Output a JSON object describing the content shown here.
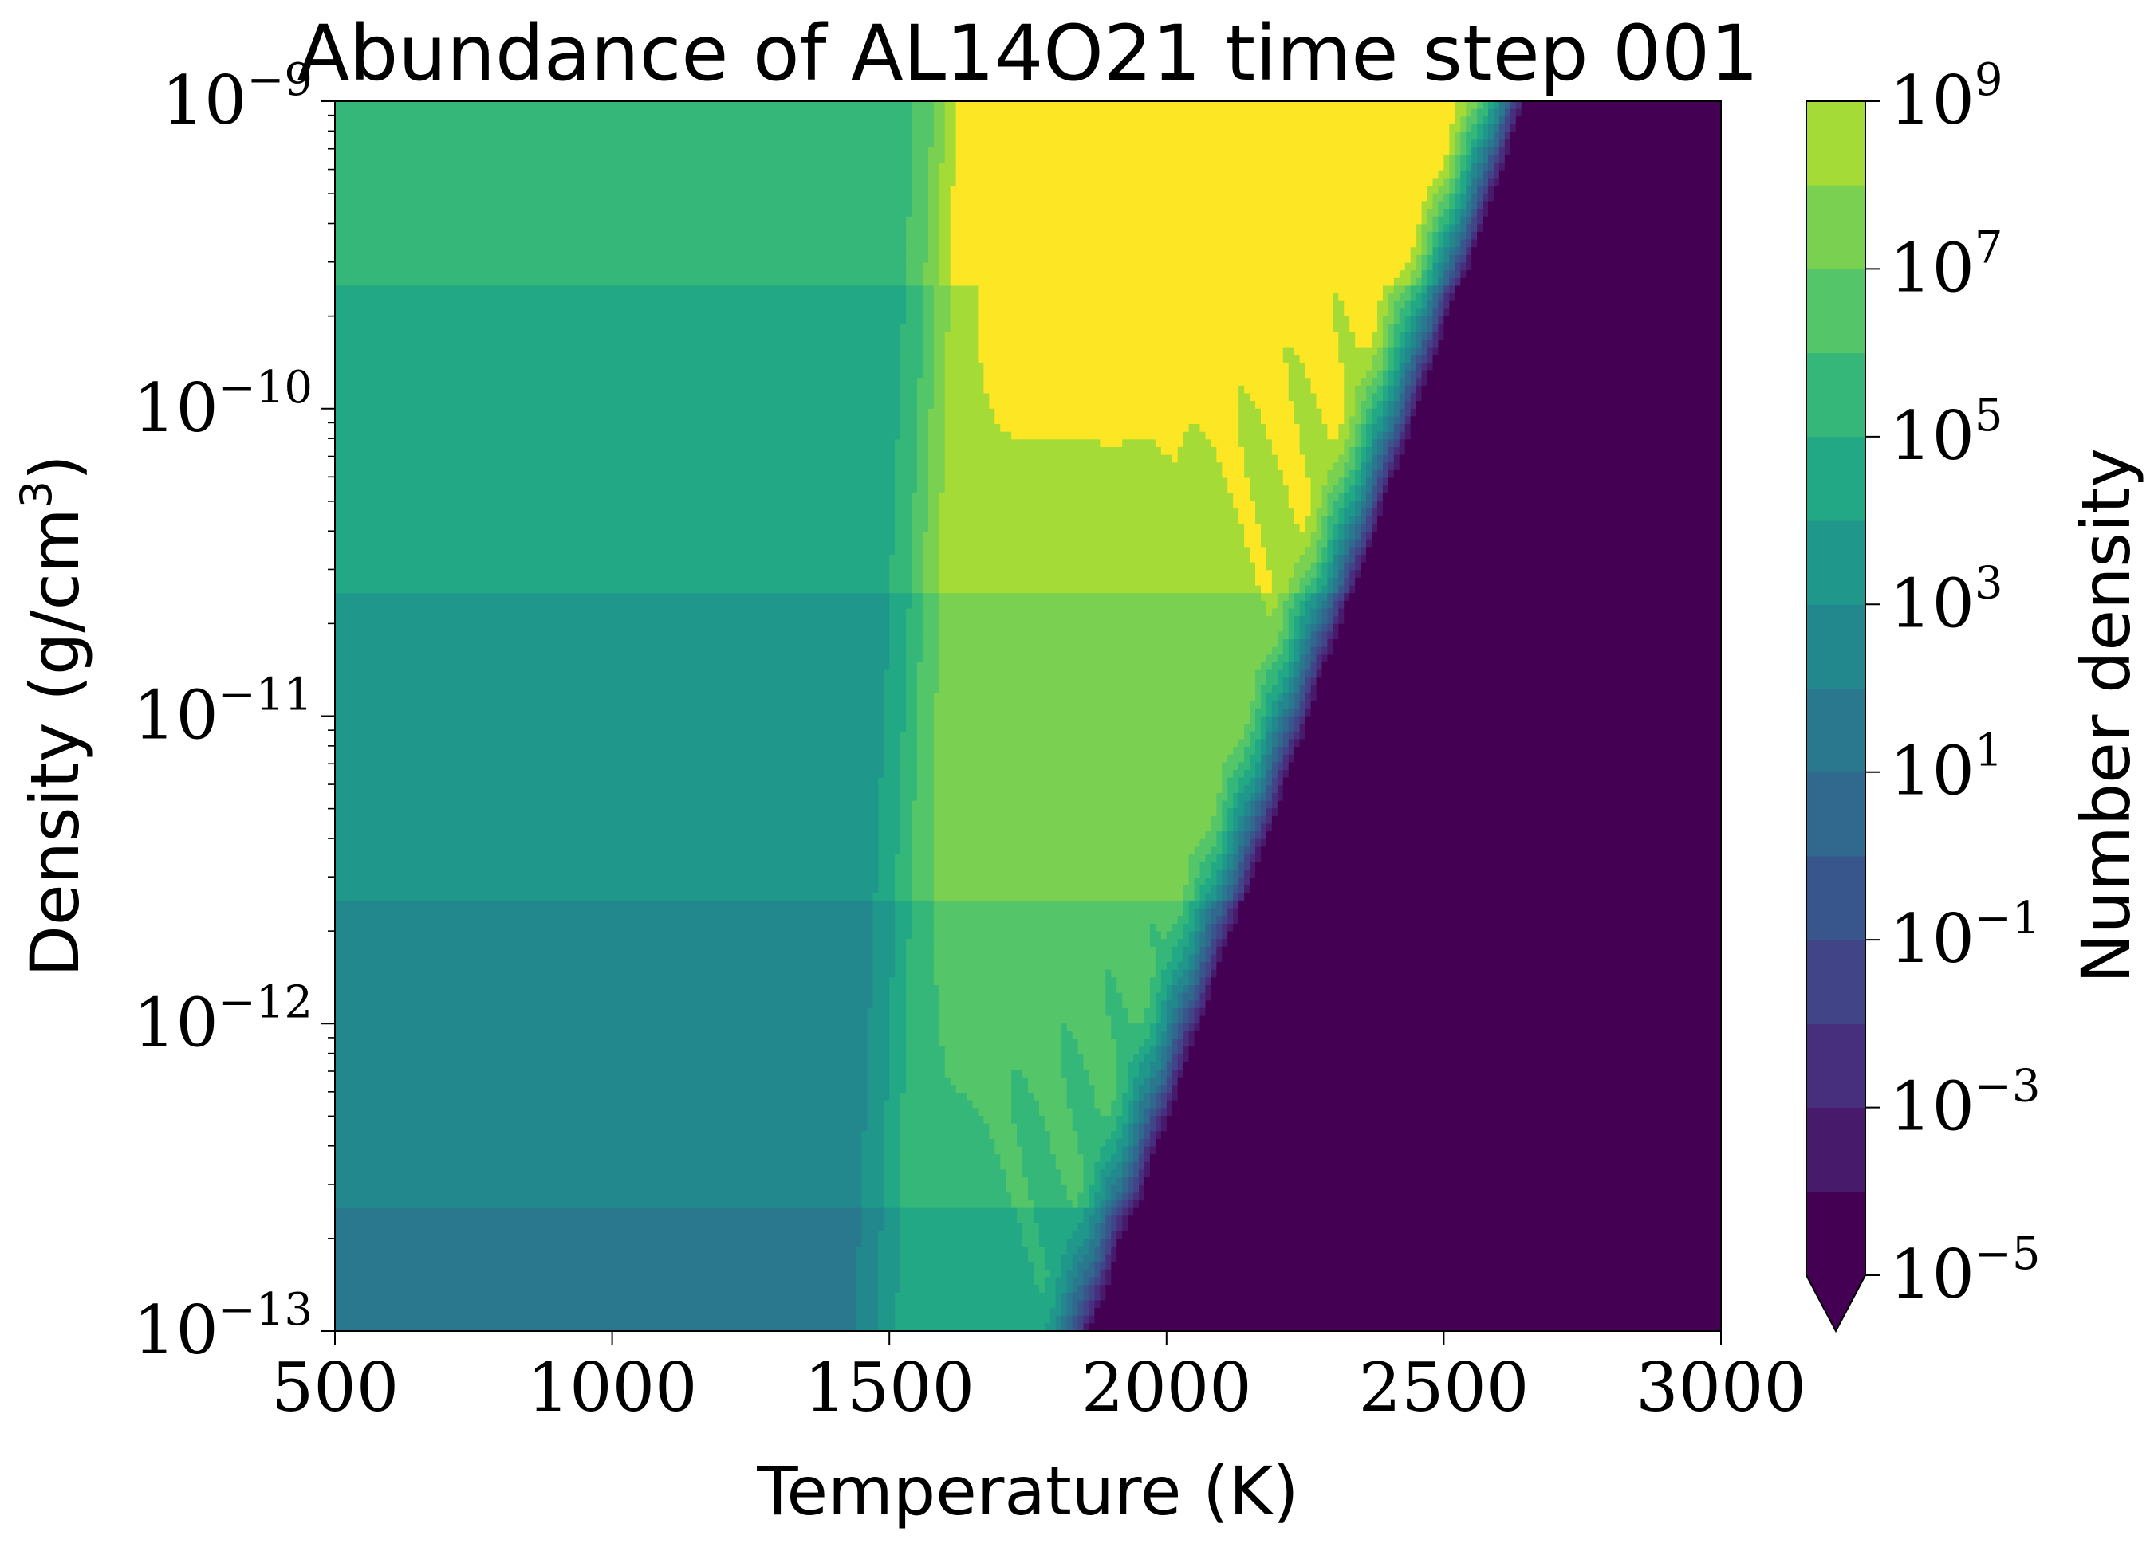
{
  "chart_data": {
    "type": "contourf",
    "title": "Abundance of AL14O21 time step 001",
    "xlabel": "Temperature (K)",
    "ylabel_text": "Density (g/cm",
    "ylabel_sup": "3",
    "ylabel_close": ")",
    "xlim": [
      500,
      3000
    ],
    "ylim": [
      1e-13,
      1e-09
    ],
    "yscale": "log",
    "x_ticks": [
      500,
      1000,
      1500,
      2000,
      2500,
      3000
    ],
    "x_tick_labels": [
      "500",
      "1000",
      "1500",
      "2000",
      "2500",
      "3000"
    ],
    "y_ticks": [
      {
        "value": 1e-13,
        "base": "10",
        "exp": "−13"
      },
      {
        "value": 1e-12,
        "base": "10",
        "exp": "−12"
      },
      {
        "value": 1e-11,
        "base": "10",
        "exp": "−11"
      },
      {
        "value": 1e-10,
        "base": "10",
        "exp": "−10"
      },
      {
        "value": 1e-09,
        "base": "10",
        "exp": "−9"
      }
    ],
    "colorbar": {
      "label": "Number density",
      "scale": "log",
      "extend": "min",
      "levels_log10": [
        -5,
        -4,
        -3,
        -2,
        -1,
        0,
        1,
        2,
        3,
        4,
        5,
        6,
        7,
        8,
        9
      ],
      "tick_labels": [
        {
          "log10": 9,
          "base": "10",
          "exp": "9"
        },
        {
          "log10": 7,
          "base": "10",
          "exp": "7"
        },
        {
          "log10": 5,
          "base": "10",
          "exp": "5"
        },
        {
          "log10": 3,
          "base": "10",
          "exp": "3"
        },
        {
          "log10": 1,
          "base": "10",
          "exp": "1"
        },
        {
          "log10": -1,
          "base": "10",
          "exp": "−1"
        },
        {
          "log10": -3,
          "base": "10",
          "exp": "−3"
        },
        {
          "log10": -5,
          "base": "10",
          "exp": "−5"
        }
      ],
      "colors": [
        "#440154",
        "#481a6c",
        "#472f7d",
        "#414487",
        "#39568c",
        "#31688e",
        "#2a788e",
        "#23888e",
        "#1f988b",
        "#22a884",
        "#35b779",
        "#54c568",
        "#7ad151",
        "#a5db36",
        "#d2e21b",
        "#fde725"
      ],
      "underflow_color": "#440154"
    },
    "field_model": {
      "description": "log10 abundance vs temperature (K) and log10 density",
      "plateau_bands": [
        {
          "log_rho_max": -12.6,
          "log10_n": 1.5
        },
        {
          "log_rho_max": -11.6,
          "log10_n": 2.5
        },
        {
          "log_rho_max": -10.6,
          "log10_n": 3.5
        },
        {
          "log_rho_max": -9.6,
          "log10_n": 4.5
        },
        {
          "log_rho_max": -9.0,
          "log10_n": 5.5
        }
      ],
      "cutoff_T_at_log_rho": [
        {
          "log_rho": -13,
          "T": 2000
        },
        {
          "log_rho": -9,
          "T": 2750
        }
      ]
    }
  }
}
